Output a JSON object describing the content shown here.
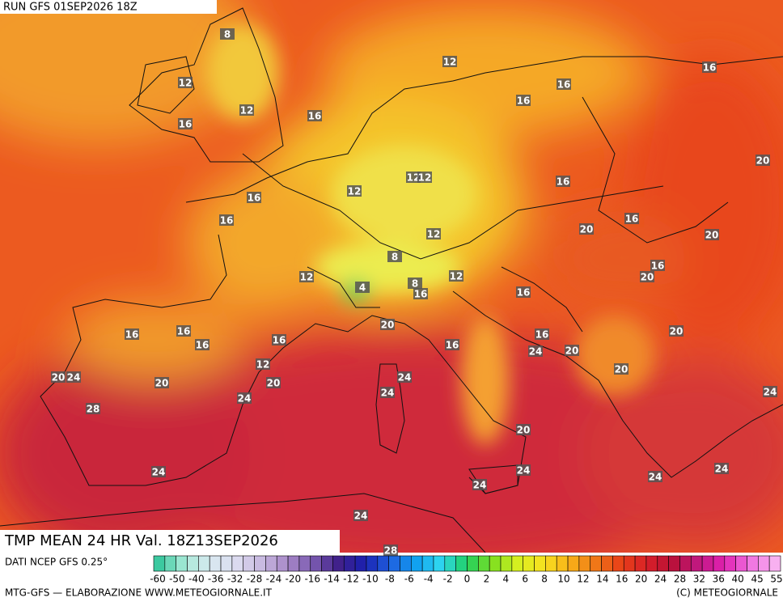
{
  "header": {
    "run": "RUN GFS 01SEP2026 18Z"
  },
  "title": "TMP MEAN 24 HR Val. 18Z13SEP2026",
  "source": "DATI NCEP GFS 0.25°",
  "colorbar": {
    "ticks": [
      -60,
      -50,
      -40,
      -36,
      -32,
      -28,
      -24,
      -20,
      -16,
      -14,
      -12,
      -10,
      -8,
      -6,
      -4,
      -2,
      0,
      2,
      4,
      6,
      8,
      10,
      12,
      14,
      16,
      20,
      24,
      28,
      32,
      36,
      40,
      45,
      55
    ]
  },
  "map_labels": [
    8,
    12,
    12,
    16,
    16,
    12,
    16,
    16,
    16,
    20,
    12,
    12,
    16,
    12,
    16,
    16,
    20,
    16,
    20,
    12,
    16,
    20,
    8,
    12,
    12,
    8,
    4,
    16,
    16,
    20,
    20,
    16,
    16,
    16,
    16,
    16,
    16,
    24,
    20,
    12,
    20,
    20,
    24,
    20,
    24,
    24,
    20,
    24,
    28,
    24,
    20,
    24,
    24,
    24,
    24,
    24,
    24,
    28
  ],
  "footer": {
    "left": "MTG-GFS — ELABORAZIONE WWW.METEOGIORNALE.IT",
    "right": "(C) METEOGIORNALE"
  }
}
